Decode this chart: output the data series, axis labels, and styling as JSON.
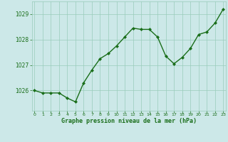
{
  "x": [
    0,
    1,
    2,
    3,
    4,
    5,
    6,
    7,
    8,
    9,
    10,
    11,
    12,
    13,
    14,
    15,
    16,
    17,
    18,
    19,
    20,
    21,
    22,
    23
  ],
  "y": [
    1026.0,
    1025.9,
    1025.9,
    1025.9,
    1025.7,
    1025.55,
    1026.3,
    1026.8,
    1027.25,
    1027.45,
    1027.75,
    1028.1,
    1028.45,
    1028.4,
    1028.4,
    1028.1,
    1027.35,
    1027.05,
    1027.3,
    1027.65,
    1028.2,
    1028.3,
    1028.65,
    1029.2
  ],
  "line_color": "#1a6e1a",
  "marker": "D",
  "marker_size": 2.0,
  "bg_color": "#cce8e8",
  "grid_color": "#99ccbb",
  "xlabel": "Graphe pression niveau de la mer (hPa)",
  "xlabel_color": "#1a6e1a",
  "tick_color": "#1a6e1a",
  "yticks": [
    1026,
    1027,
    1028,
    1029
  ],
  "xticks": [
    0,
    1,
    2,
    3,
    4,
    5,
    6,
    7,
    8,
    9,
    10,
    11,
    12,
    13,
    14,
    15,
    16,
    17,
    18,
    19,
    20,
    21,
    22,
    23
  ],
  "xlim": [
    -0.3,
    23.3
  ],
  "ylim": [
    1025.2,
    1029.5
  ],
  "linewidth": 1.0
}
